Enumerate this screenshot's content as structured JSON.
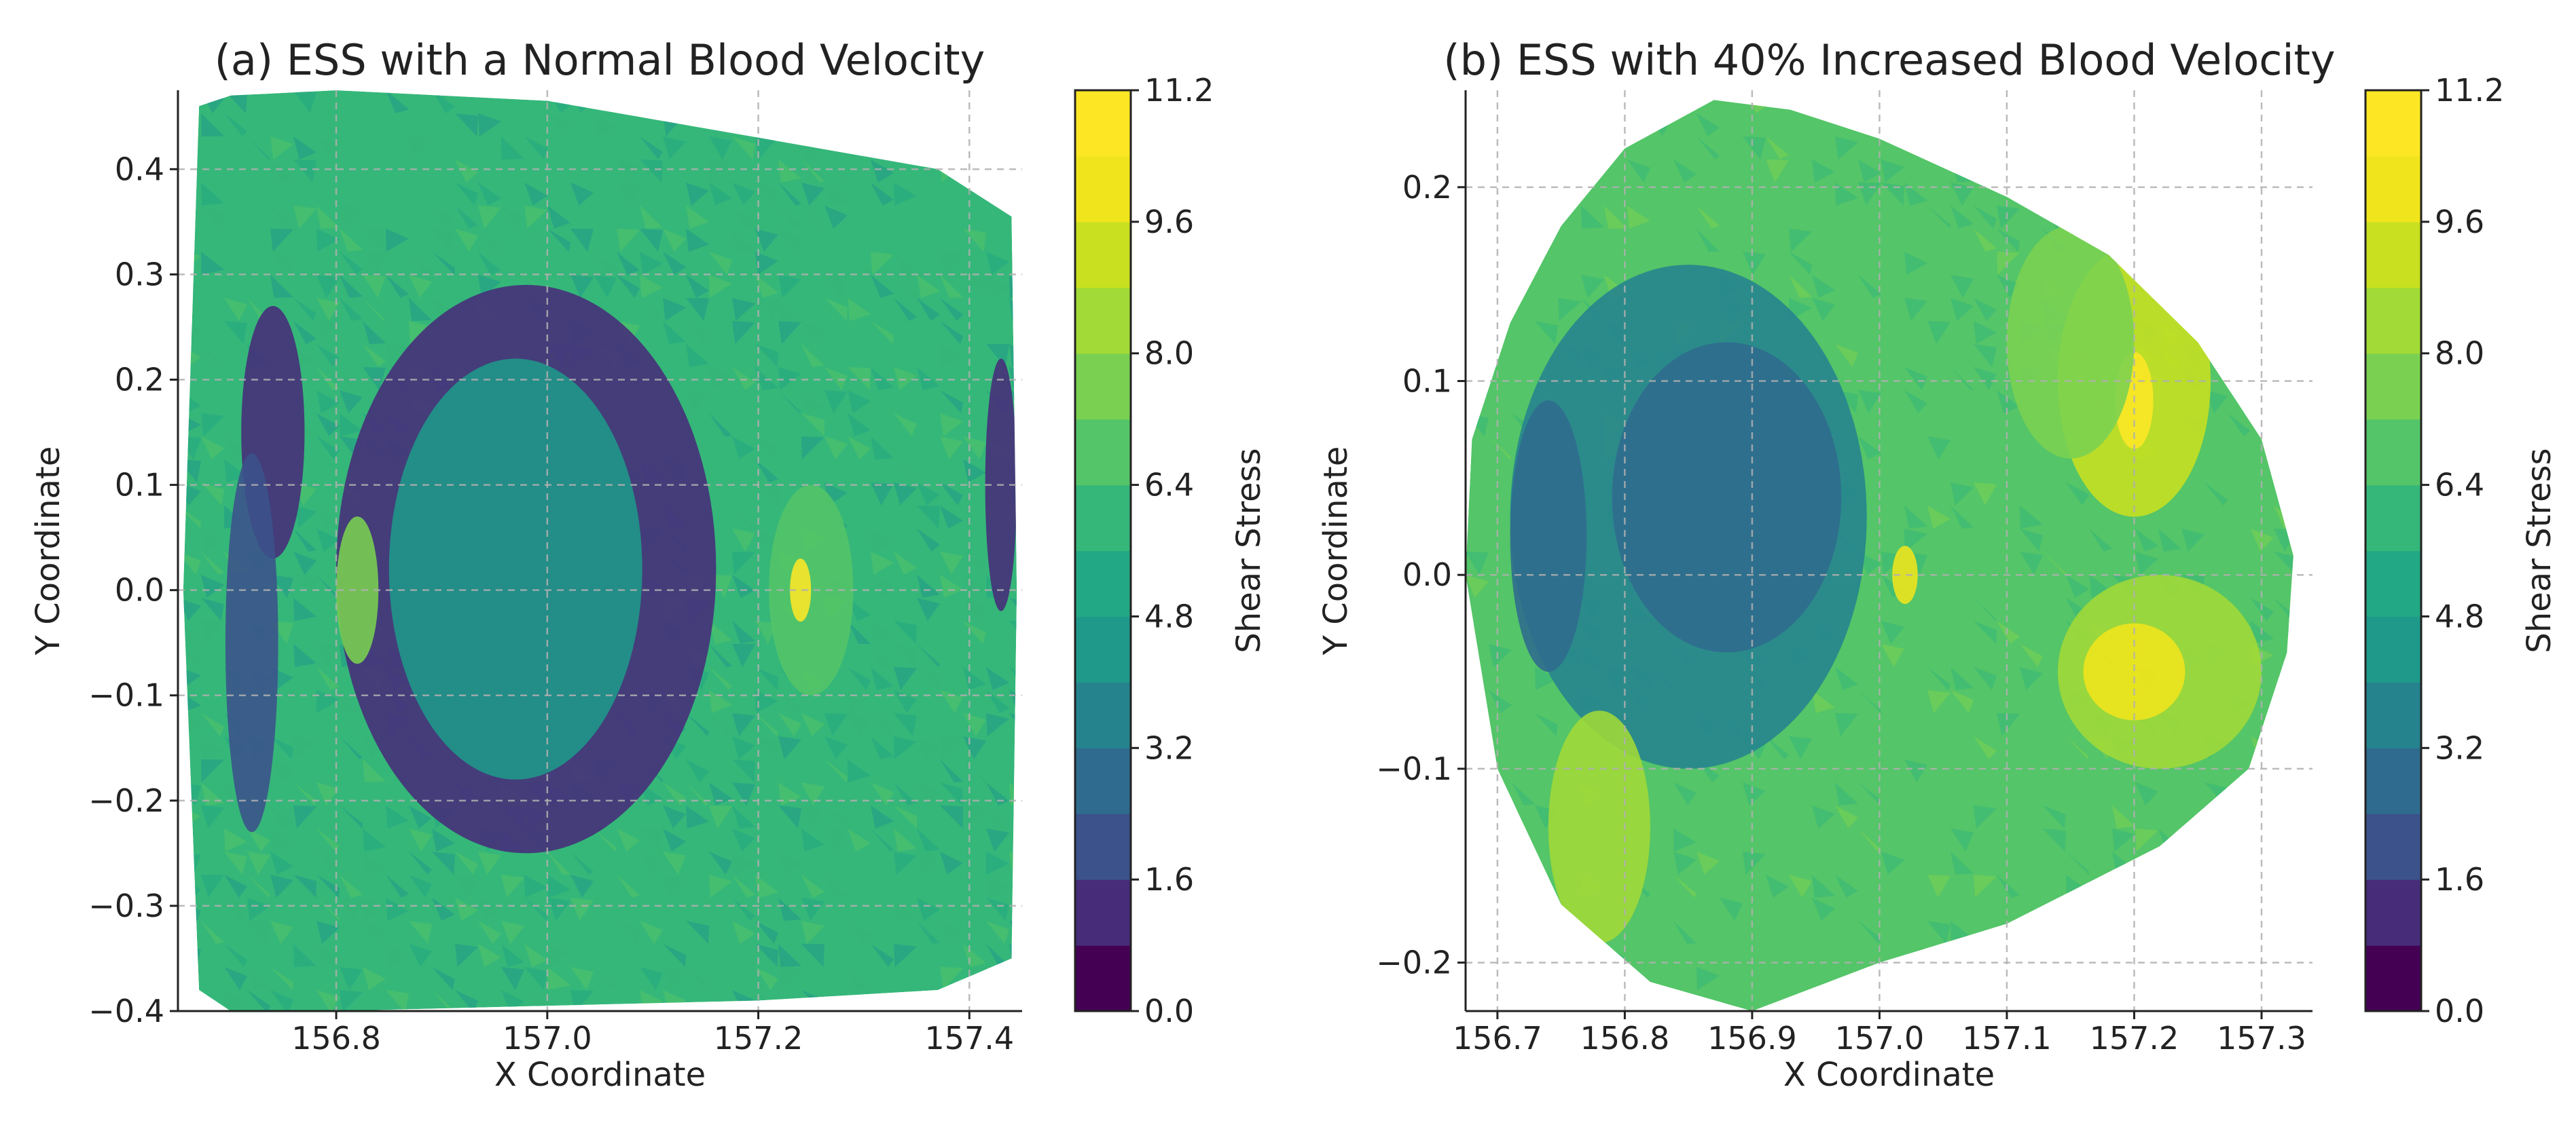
{
  "figure": {
    "panels": [
      "panel_a",
      "panel_b"
    ]
  },
  "chart_data": [
    {
      "id": "panel_a",
      "type": "heatmap",
      "title": "(a) ESS with a Normal Blood Velocity",
      "xlabel": "X Coordinate",
      "ylabel": "Y Coordinate",
      "xlim": [
        156.65,
        157.45
      ],
      "ylim": [
        -0.4,
        0.475
      ],
      "xticks": [
        156.8,
        157.0,
        157.2,
        157.4
      ],
      "xtick_labels": [
        "156.8",
        "157.0",
        "157.2",
        "157.4"
      ],
      "yticks": [
        -0.4,
        -0.3,
        -0.2,
        -0.1,
        0.0,
        0.1,
        0.2,
        0.3,
        0.4
      ],
      "ytick_labels": [
        "−0.4",
        "−0.3",
        "−0.2",
        "−0.1",
        "0.0",
        "0.1",
        "0.2",
        "0.3",
        "0.4"
      ],
      "grid": true,
      "boundary": [
        [
          156.67,
          0.46
        ],
        [
          156.7,
          0.47
        ],
        [
          156.8,
          0.475
        ],
        [
          157.0,
          0.465
        ],
        [
          157.2,
          0.43
        ],
        [
          157.37,
          0.4
        ],
        [
          157.44,
          0.355
        ],
        [
          157.445,
          0.0
        ],
        [
          157.44,
          -0.35
        ],
        [
          157.37,
          -0.38
        ],
        [
          157.2,
          -0.39
        ],
        [
          157.0,
          -0.395
        ],
        [
          156.8,
          -0.4
        ],
        [
          156.7,
          -0.4
        ],
        [
          156.67,
          -0.38
        ],
        [
          156.655,
          0.0
        ]
      ],
      "regions": [
        {
          "shape": "ellipse",
          "cx": 156.98,
          "cy": 0.02,
          "rx": 0.18,
          "ry": 0.27,
          "value": 1.5
        },
        {
          "shape": "ellipse",
          "cx": 156.74,
          "cy": 0.15,
          "rx": 0.03,
          "ry": 0.12,
          "value": 1.2
        },
        {
          "shape": "ellipse",
          "cx": 156.72,
          "cy": -0.05,
          "rx": 0.025,
          "ry": 0.18,
          "value": 2.2
        },
        {
          "shape": "ellipse",
          "cx": 156.97,
          "cy": 0.02,
          "rx": 0.12,
          "ry": 0.2,
          "value": 4.2
        },
        {
          "shape": "ellipse",
          "cx": 157.25,
          "cy": 0.0,
          "rx": 0.04,
          "ry": 0.1,
          "value": 6.6
        },
        {
          "shape": "ellipse",
          "cx": 157.24,
          "cy": 0.0,
          "rx": 0.01,
          "ry": 0.03,
          "value": 10.5
        },
        {
          "shape": "ellipse",
          "cx": 157.43,
          "cy": 0.1,
          "rx": 0.015,
          "ry": 0.12,
          "value": 1.0
        },
        {
          "shape": "ellipse",
          "cx": 156.82,
          "cy": 0.0,
          "rx": 0.02,
          "ry": 0.07,
          "value": 7.8
        }
      ],
      "colorbar": {
        "label": "Shear Stress",
        "min": 0.0,
        "max": 11.2,
        "levels": [
          0.0,
          0.8,
          1.6,
          2.4,
          3.2,
          4.0,
          4.8,
          5.6,
          6.4,
          7.2,
          8.0,
          8.8,
          9.6,
          10.4,
          11.2
        ],
        "ticks": [
          "0.0",
          "1.6",
          "3.2",
          "4.8",
          "6.4",
          "8.0",
          "9.6",
          "11.2"
        ],
        "colors": [
          "#440154",
          "#472c7a",
          "#3b528b",
          "#2f6b8e",
          "#25838e",
          "#1f998a",
          "#22a884",
          "#35b779",
          "#54c568",
          "#7ad151",
          "#a2da37",
          "#c8e020",
          "#f0e51c",
          "#fde725"
        ]
      }
    },
    {
      "id": "panel_b",
      "type": "heatmap",
      "title": "(b) ESS with 40% Increased Blood Velocity",
      "xlabel": "X Coordinate",
      "ylabel": "Y Coordinate",
      "xlim": [
        156.675,
        157.34
      ],
      "ylim": [
        -0.225,
        0.25
      ],
      "xticks": [
        156.7,
        156.8,
        156.9,
        157.0,
        157.1,
        157.2,
        157.3
      ],
      "xtick_labels": [
        "156.7",
        "156.8",
        "156.9",
        "157.0",
        "157.1",
        "157.2",
        "157.3"
      ],
      "yticks": [
        -0.2,
        -0.1,
        0.0,
        0.1,
        0.2
      ],
      "ytick_labels": [
        "−0.2",
        "−0.1",
        "0.0",
        "0.1",
        "0.2"
      ],
      "grid": true,
      "boundary": [
        [
          156.675,
          0.0
        ],
        [
          156.68,
          0.07
        ],
        [
          156.71,
          0.13
        ],
        [
          156.75,
          0.18
        ],
        [
          156.8,
          0.22
        ],
        [
          156.87,
          0.245
        ],
        [
          156.93,
          0.24
        ],
        [
          157.0,
          0.225
        ],
        [
          157.1,
          0.195
        ],
        [
          157.18,
          0.165
        ],
        [
          157.25,
          0.12
        ],
        [
          157.3,
          0.07
        ],
        [
          157.325,
          0.01
        ],
        [
          157.32,
          -0.04
        ],
        [
          157.29,
          -0.1
        ],
        [
          157.22,
          -0.14
        ],
        [
          157.1,
          -0.18
        ],
        [
          157.0,
          -0.2
        ],
        [
          156.9,
          -0.225
        ],
        [
          156.82,
          -0.21
        ],
        [
          156.75,
          -0.17
        ],
        [
          156.7,
          -0.1
        ]
      ],
      "regions": [
        {
          "shape": "ellipse",
          "cx": 156.85,
          "cy": 0.03,
          "rx": 0.14,
          "ry": 0.13,
          "value": 3.6
        },
        {
          "shape": "ellipse",
          "cx": 156.88,
          "cy": 0.04,
          "rx": 0.09,
          "ry": 0.08,
          "value": 2.8
        },
        {
          "shape": "ellipse",
          "cx": 156.74,
          "cy": 0.02,
          "rx": 0.03,
          "ry": 0.07,
          "value": 2.4
        },
        {
          "shape": "ellipse",
          "cx": 157.2,
          "cy": 0.1,
          "rx": 0.06,
          "ry": 0.07,
          "value": 8.8
        },
        {
          "shape": "ellipse",
          "cx": 157.2,
          "cy": 0.09,
          "rx": 0.015,
          "ry": 0.025,
          "value": 10.8
        },
        {
          "shape": "ellipse",
          "cx": 157.22,
          "cy": -0.05,
          "rx": 0.08,
          "ry": 0.05,
          "value": 8.6
        },
        {
          "shape": "ellipse",
          "cx": 157.2,
          "cy": -0.05,
          "rx": 0.04,
          "ry": 0.025,
          "value": 9.8
        },
        {
          "shape": "ellipse",
          "cx": 156.78,
          "cy": -0.13,
          "rx": 0.04,
          "ry": 0.06,
          "value": 8.4
        },
        {
          "shape": "ellipse",
          "cx": 157.02,
          "cy": 0.0,
          "rx": 0.01,
          "ry": 0.015,
          "value": 10.0
        },
        {
          "shape": "ellipse",
          "cx": 157.15,
          "cy": 0.12,
          "rx": 0.05,
          "ry": 0.06,
          "value": 7.4
        }
      ],
      "colorbar": {
        "label": "Shear Stress",
        "min": 0.0,
        "max": 11.2,
        "levels": [
          0.0,
          0.8,
          1.6,
          2.4,
          3.2,
          4.0,
          4.8,
          5.6,
          6.4,
          7.2,
          8.0,
          8.8,
          9.6,
          10.4,
          11.2
        ],
        "ticks": [
          "0.0",
          "1.6",
          "3.2",
          "4.8",
          "6.4",
          "8.0",
          "9.6",
          "11.2"
        ],
        "colors": [
          "#440154",
          "#472c7a",
          "#3b528b",
          "#2f6b8e",
          "#25838e",
          "#1f998a",
          "#22a884",
          "#35b779",
          "#54c568",
          "#7ad151",
          "#a2da37",
          "#c8e020",
          "#f0e51c",
          "#fde725"
        ]
      }
    }
  ],
  "panel_base_values": {
    "panel_a": 5.6,
    "panel_b": 6.6
  }
}
